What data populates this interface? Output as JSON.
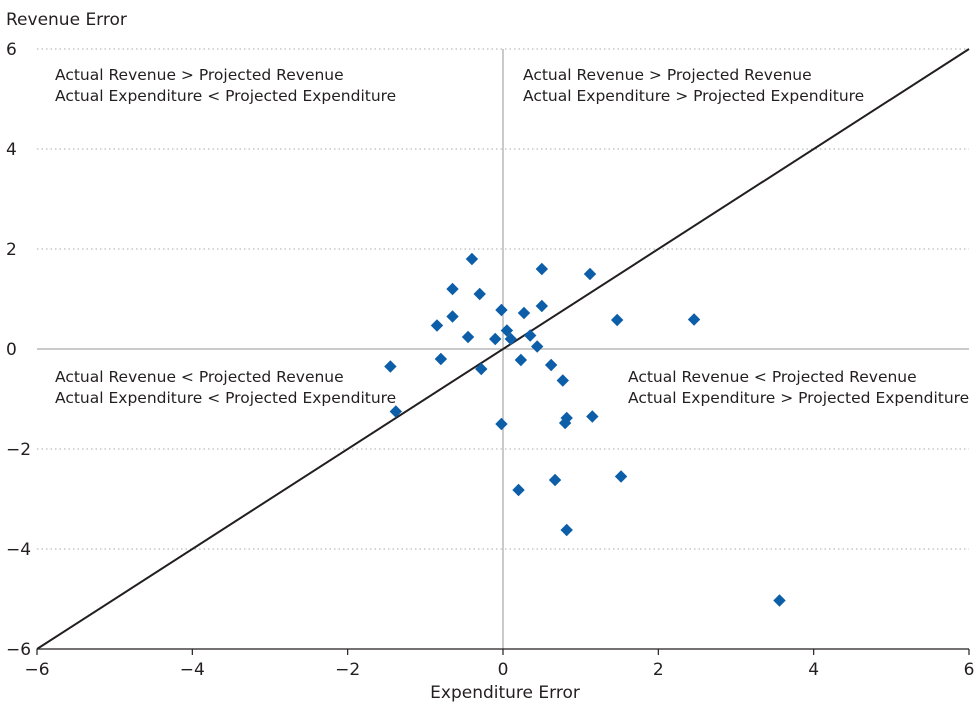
{
  "chart_data": {
    "type": "scatter",
    "ylabel": "Revenue Error",
    "xlabel": "Expenditure Error",
    "xlim": [
      -6,
      6
    ],
    "ylim": [
      -6,
      6
    ],
    "x_ticks": [
      -6,
      -4,
      -2,
      0,
      2,
      4,
      6
    ],
    "y_ticks": [
      -6,
      -4,
      -2,
      0,
      2,
      4,
      6
    ],
    "x_tick_labels": [
      "−6",
      "−4",
      "−2",
      "0",
      "2",
      "4",
      "6"
    ],
    "y_tick_labels": [
      "−6",
      "−4",
      "−2",
      "0",
      "2",
      "4",
      "6"
    ],
    "grid": "horizontal dotted",
    "reference_line": {
      "from": [
        -6,
        -6
      ],
      "to": [
        6,
        6
      ]
    },
    "marker_color": "#0d5ea8",
    "annotations": [
      {
        "quadrant": "top-left",
        "lines": [
          "Actual Revenue > Projected Revenue",
          "Actual Expenditure < Projected Expenditure"
        ]
      },
      {
        "quadrant": "top-right",
        "lines": [
          "Actual Revenue > Projected Revenue",
          "Actual Expenditure > Projected Expenditure"
        ]
      },
      {
        "quadrant": "bottom-left",
        "lines": [
          "Actual Revenue < Projected Revenue",
          "Actual Expenditure < Projected Expenditure"
        ]
      },
      {
        "quadrant": "bottom-right",
        "lines": [
          "Actual Revenue < Projected Revenue",
          "Actual Expenditure > Projected Expenditure"
        ]
      }
    ],
    "points": [
      {
        "x": -0.4,
        "y": 1.8
      },
      {
        "x": -0.65,
        "y": 1.2
      },
      {
        "x": -0.3,
        "y": 1.1
      },
      {
        "x": -0.85,
        "y": 0.47
      },
      {
        "x": -0.65,
        "y": 0.65
      },
      {
        "x": -0.45,
        "y": 0.24
      },
      {
        "x": -0.8,
        "y": -0.2
      },
      {
        "x": -1.45,
        "y": -0.35
      },
      {
        "x": -1.38,
        "y": -1.25
      },
      {
        "x": -0.28,
        "y": -0.4
      },
      {
        "x": -0.1,
        "y": 0.2
      },
      {
        "x": -0.02,
        "y": 0.78
      },
      {
        "x": 0.05,
        "y": 0.37
      },
      {
        "x": 0.1,
        "y": 0.2
      },
      {
        "x": 0.27,
        "y": 0.72
      },
      {
        "x": 0.35,
        "y": 0.27
      },
      {
        "x": 0.44,
        "y": 0.05
      },
      {
        "x": 0.5,
        "y": 1.6
      },
      {
        "x": 0.5,
        "y": 0.86
      },
      {
        "x": 0.23,
        "y": -0.22
      },
      {
        "x": 0.62,
        "y": -0.32
      },
      {
        "x": 0.77,
        "y": -0.63
      },
      {
        "x": 0.82,
        "y": -1.38
      },
      {
        "x": 0.8,
        "y": -1.48
      },
      {
        "x": -0.02,
        "y": -1.5
      },
      {
        "x": 1.12,
        "y": 1.5
      },
      {
        "x": 1.15,
        "y": -1.35
      },
      {
        "x": 1.47,
        "y": 0.58
      },
      {
        "x": 2.46,
        "y": 0.59
      },
      {
        "x": 1.52,
        "y": -2.55
      },
      {
        "x": 0.67,
        "y": -2.62
      },
      {
        "x": 0.2,
        "y": -2.82
      },
      {
        "x": 0.82,
        "y": -3.62
      },
      {
        "x": 3.56,
        "y": -5.03
      }
    ]
  }
}
